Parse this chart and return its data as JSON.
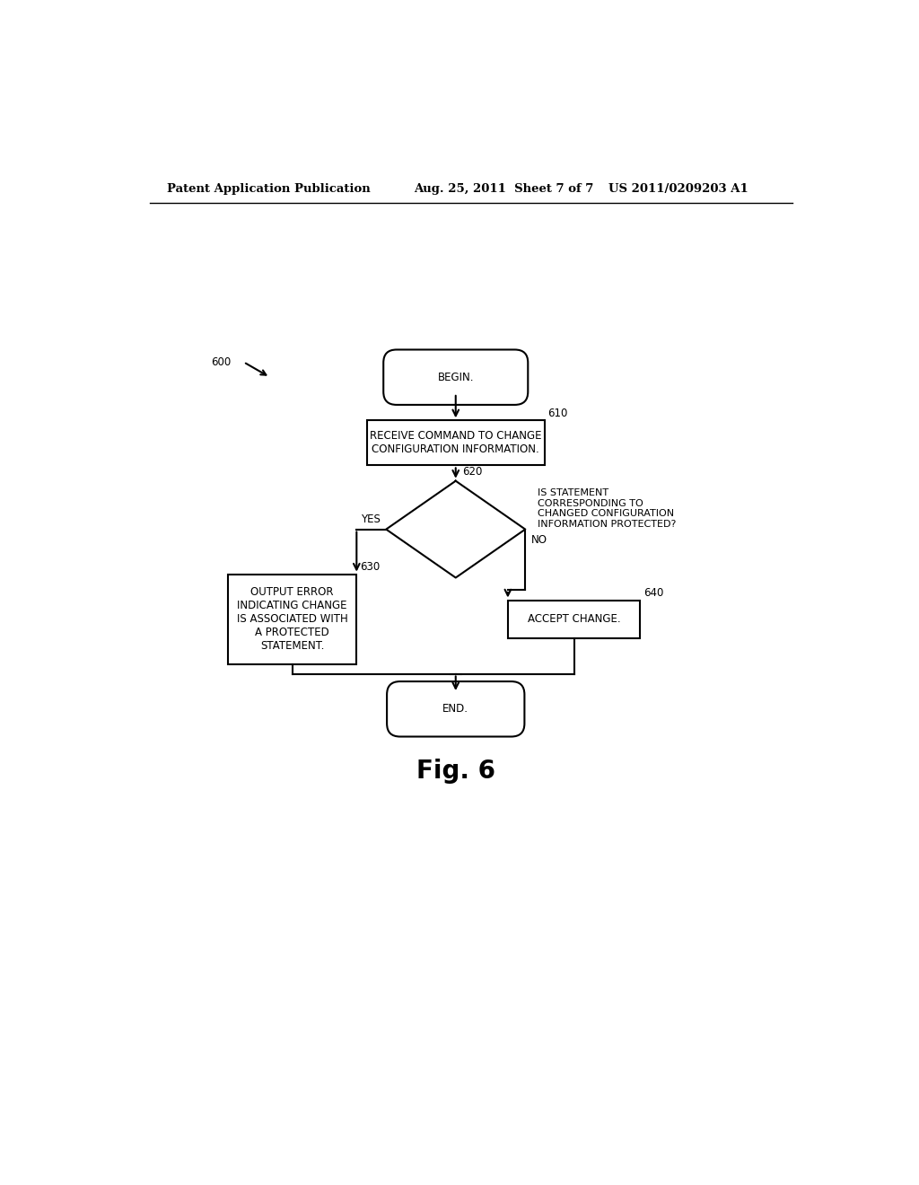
{
  "bg_color": "#ffffff",
  "header_left": "Patent Application Publication",
  "header_middle": "Aug. 25, 2011  Sheet 7 of 7",
  "header_right": "US 2011/0209203 A1",
  "fig_label": "Fig. 6",
  "label_600": "600",
  "label_610": "610",
  "label_620": "620",
  "label_630": "630",
  "label_640": "640",
  "begin_text": "BEGIN.",
  "end_text": "END.",
  "box610_text": "RECEIVE COMMAND TO CHANGE\nCONFIGURATION INFORMATION.",
  "diamond_question": "IS STATEMENT\nCORRESPONDING TO\nCHANGED CONFIGURATION\nINFORMATION PROTECTED?",
  "yes_label": "YES",
  "no_label": "NO",
  "box630_text": "OUTPUT ERROR\nINDICATING CHANGE\nIS ASSOCIATED WITH\nA PROTECTED\nSTATEMENT.",
  "box640_text": "ACCEPT CHANGE.",
  "font_size_body": 8.5,
  "font_size_header": 9.5,
  "font_size_fig": 20,
  "lw": 1.5
}
